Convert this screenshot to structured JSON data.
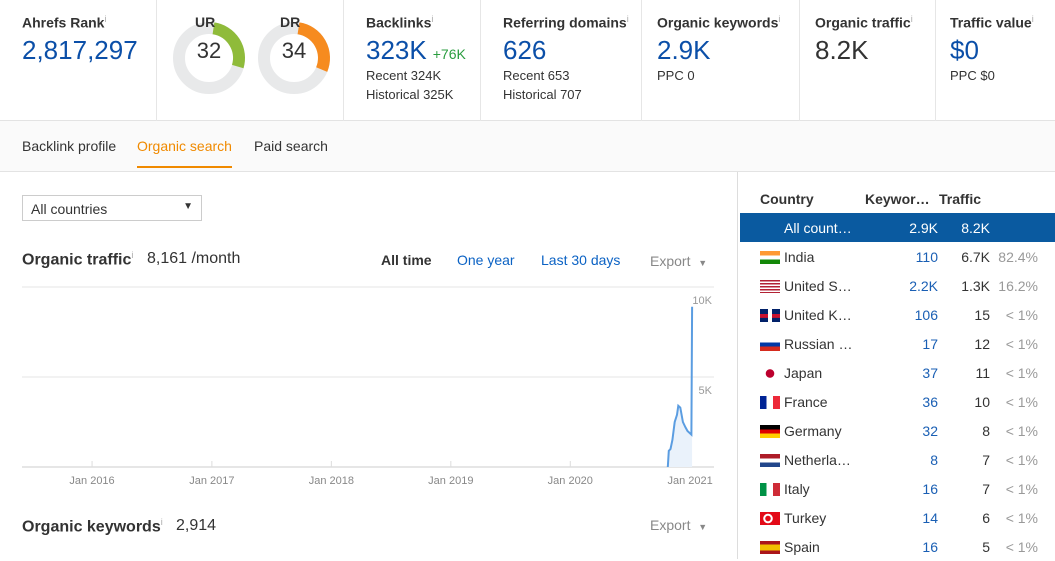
{
  "stats": {
    "ahrefs_rank": {
      "label": "Ahrefs Rank",
      "value": "2,817,297"
    },
    "ur": {
      "label": "UR",
      "value": "32",
      "fraction": 0.32,
      "color": "#8fbb3a"
    },
    "dr": {
      "label": "DR",
      "value": "34",
      "fraction": 0.34,
      "color": "#f68b1f"
    },
    "backlinks": {
      "label": "Backlinks",
      "value": "323K",
      "delta": "+76K",
      "recent": "Recent 324K",
      "historical": "Historical 325K"
    },
    "referring_domains": {
      "label": "Referring domains",
      "value": "626",
      "recent": "Recent 653",
      "historical": "Historical 707"
    },
    "organic_keywords": {
      "label": "Organic keywords",
      "value": "2.9K",
      "ppc": "PPC 0"
    },
    "organic_traffic": {
      "label": "Organic traffic",
      "value": "8.2K"
    },
    "traffic_value": {
      "label": "Traffic value",
      "value": "$0",
      "ppc": "PPC $0"
    },
    "info": "i"
  },
  "tabs": [
    "Backlink profile",
    "Organic search",
    "Paid search"
  ],
  "country_select": "All countries",
  "traffic": {
    "title": "Organic traffic",
    "value": "8,161 /month",
    "ranges": [
      "All time",
      "One year",
      "Last 30 days"
    ],
    "export": "Export"
  },
  "keywords": {
    "title": "Organic keywords",
    "value": "2,914",
    "export": "Export"
  },
  "chart_data": {
    "type": "area",
    "x_ticks": [
      "Jan 2016",
      "Jan 2017",
      "Jan 2018",
      "Jan 2019",
      "Jan 2020",
      "Jan 2021"
    ],
    "y_ticks": [
      "5K",
      "10K"
    ],
    "ylim": [
      0,
      10000
    ],
    "xlim": [
      "2015-06-01",
      "2021-03-15"
    ],
    "grid": true,
    "color": "#5b9de1",
    "series": [
      {
        "points": [
          [
            "2020-10-25",
            0
          ],
          [
            "2020-10-28",
            900
          ],
          [
            "2020-11-02",
            1000
          ],
          [
            "2020-11-08",
            1500
          ],
          [
            "2020-11-15",
            2500
          ],
          [
            "2020-11-22",
            2900
          ],
          [
            "2020-11-26",
            3400
          ],
          [
            "2020-12-02",
            3300
          ],
          [
            "2020-12-10",
            2500
          ],
          [
            "2020-12-18",
            2200
          ],
          [
            "2020-12-24",
            2000
          ],
          [
            "2021-01-05",
            1800
          ],
          [
            "2021-01-07",
            8900
          ]
        ]
      }
    ]
  },
  "countries": {
    "headers": [
      "Country",
      "Keywor…",
      "Traffic"
    ],
    "rows": [
      {
        "name": "All count…",
        "kw": "2.9K",
        "traffic": "8.2K",
        "pct": "",
        "flag": "none"
      },
      {
        "name": "India",
        "kw": "110",
        "traffic": "6.7K",
        "pct": "82.4%",
        "flag": "in"
      },
      {
        "name": "United S…",
        "kw": "2.2K",
        "traffic": "1.3K",
        "pct": "16.2%",
        "flag": "us"
      },
      {
        "name": "United K…",
        "kw": "106",
        "traffic": "15",
        "pct": "< 1%",
        "flag": "gb"
      },
      {
        "name": "Russian …",
        "kw": "17",
        "traffic": "12",
        "pct": "< 1%",
        "flag": "ru"
      },
      {
        "name": "Japan",
        "kw": "37",
        "traffic": "11",
        "pct": "< 1%",
        "flag": "jp"
      },
      {
        "name": "France",
        "kw": "36",
        "traffic": "10",
        "pct": "< 1%",
        "flag": "fr"
      },
      {
        "name": "Germany",
        "kw": "32",
        "traffic": "8",
        "pct": "< 1%",
        "flag": "de"
      },
      {
        "name": "Netherla…",
        "kw": "8",
        "traffic": "7",
        "pct": "< 1%",
        "flag": "nl"
      },
      {
        "name": "Italy",
        "kw": "16",
        "traffic": "7",
        "pct": "< 1%",
        "flag": "it"
      },
      {
        "name": "Turkey",
        "kw": "14",
        "traffic": "6",
        "pct": "< 1%",
        "flag": "tr"
      },
      {
        "name": "Spain",
        "kw": "16",
        "traffic": "5",
        "pct": "< 1%",
        "flag": "es"
      }
    ]
  }
}
